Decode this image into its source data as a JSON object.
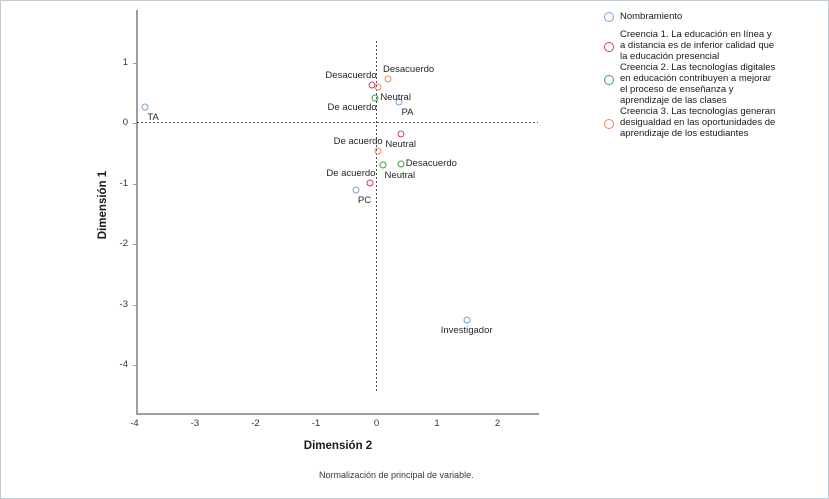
{
  "figure": {
    "xlabel": "Dimensión 2",
    "ylabel": "Dimensión 1",
    "footnote": "Normalización de principal de variable."
  },
  "legend": {
    "items": [
      {
        "name": "Nombramiento",
        "color": "#74A1D6",
        "lines": [
          "Nombramiento"
        ]
      },
      {
        "name": "Creencia 1",
        "color": "#C5406E",
        "lines": [
          "Creencia 1. La educación en línea y",
          "a distancia es de inferior calidad que",
          "la educación presencial"
        ]
      },
      {
        "name": "Creencia 2",
        "color": "#3FA249",
        "lines": [
          "Creencia 2. Las tecnologías digitales",
          "en educación contribuyen a mejorar",
          "el proceso de enseñanza y",
          "aprendizaje de las clases"
        ]
      },
      {
        "name": "Creencia 3",
        "color": "#E78A5E",
        "lines": [
          "Creencia 3. Las tecnologías generan",
          "desigualdad en las oportunidades de",
          "aprendizaje de los estudiantes"
        ]
      }
    ]
  },
  "chart_data": {
    "type": "scatter",
    "title": "",
    "xlabel": "Dimensión 2",
    "ylabel": "Dimensión 1",
    "footnote": "Normalización de principal de variable.",
    "xlim": [
      -4.0,
      2.7
    ],
    "ylim": [
      -4.8,
      1.85
    ],
    "x_ticks": [
      -4,
      -3,
      -2,
      -1,
      0,
      1,
      2
    ],
    "y_ticks": [
      1,
      0,
      -1,
      -2,
      -3,
      -4
    ],
    "reference_lines": {
      "x": 0,
      "y": 0
    },
    "grid": false,
    "legend_position": "right",
    "series": [
      {
        "name": "Nombramiento",
        "color": "#74A1D6",
        "points": [
          {
            "label": "TA",
            "x": -3.82,
            "y": 0.26,
            "label_pos": "below-right"
          },
          {
            "label": "PA",
            "x": 0.38,
            "y": 0.34,
            "label_pos": "below-right"
          },
          {
            "label": "PC",
            "x": -0.34,
            "y": -1.1,
            "label_pos": "below-right"
          },
          {
            "label": "Investigador",
            "x": 1.49,
            "y": -3.26,
            "label_pos": "below"
          }
        ]
      },
      {
        "name": "Creencia 1. La educación en línea y a distancia es de inferior calidad que la educación presencial",
        "color": "#C5406E",
        "points": [
          {
            "label": "Desacuerdo",
            "x": -0.08,
            "y": 0.62,
            "label_pos": "above-left"
          },
          {
            "label": "Neutral",
            "x": 0.4,
            "y": -0.18,
            "label_pos": "below"
          },
          {
            "label": "De acuerdo",
            "x": -0.1,
            "y": -0.99,
            "label_pos": "above-left"
          }
        ]
      },
      {
        "name": "Creencia 2. Las tecnologías digitales en educación contribuyen a mejorar el proceso de enseñanza y aprendizaje de las clases",
        "color": "#3FA249",
        "points": [
          {
            "label": "De acuerdo",
            "x": -0.03,
            "y": 0.42,
            "label_pos": "below-left"
          },
          {
            "label": "Neutral",
            "x": 0.1,
            "y": -0.69,
            "label_pos": "below-right"
          },
          {
            "label": "Desacuerdo",
            "x": 0.4,
            "y": -0.68,
            "label_pos": "right"
          }
        ]
      },
      {
        "name": "Creencia 3. Las tecnologías generan desigualdad en las oportunidades de aprendizaje de los estudiantes",
        "color": "#E78A5E",
        "points": [
          {
            "label": "Desacuerdo",
            "x": 0.19,
            "y": 0.72,
            "label_pos": "above-right"
          },
          {
            "label": "Neutral",
            "x": 0.03,
            "y": 0.6,
            "label_pos": "below-right"
          },
          {
            "label": "De acuerdo",
            "x": 0.02,
            "y": -0.47,
            "label_pos": "above-left"
          }
        ]
      }
    ]
  }
}
